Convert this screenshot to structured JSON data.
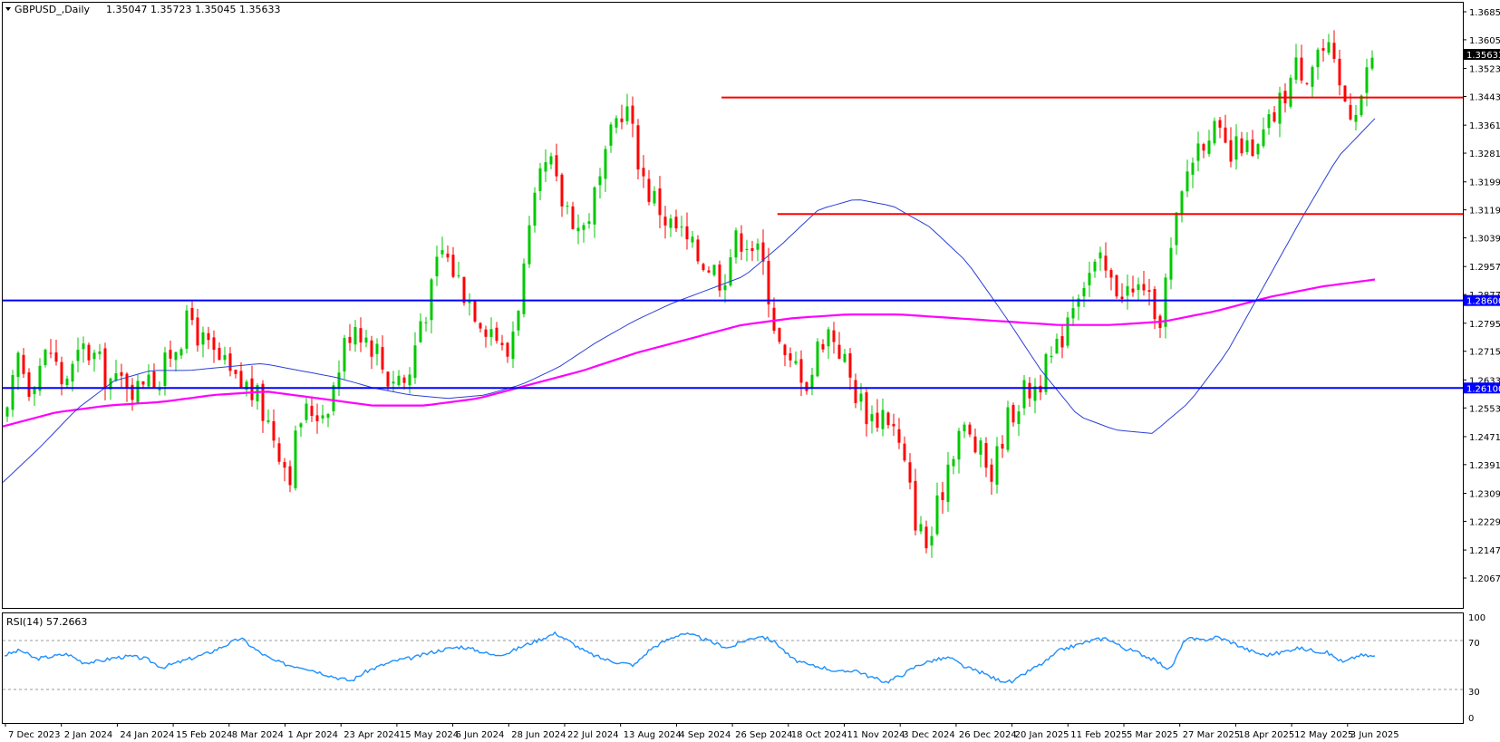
{
  "header": {
    "symbol_label": "GBPUSD_,Daily",
    "ohlc_label": "1.35047 1.35723 1.35045 1.35633"
  },
  "rsi_panel": {
    "label": "RSI(14) 57.2663",
    "levels": [
      "100",
      "70",
      "30",
      "0"
    ]
  },
  "price_tags": {
    "current": "1.35633",
    "support_upper": "1.28600",
    "support_lower": "1.26100"
  },
  "colors": {
    "bull_candle": "#00c800",
    "bear_candle": "#ff0000",
    "ma_fast": "#2b3fd6",
    "ma_slow": "#ff00ff",
    "horizontal_blue": "#0000ff",
    "horizontal_red": "#ff0000",
    "rsi_line": "#1e90ff",
    "background": "#ffffff"
  },
  "chart_data": {
    "type": "candlestick",
    "instrument": "GBPUSD_",
    "timeframe": "Daily",
    "y_axis_ticks": [
      "1.36850",
      "1.36050",
      "1.35230",
      "1.34430",
      "1.33610",
      "1.32810",
      "1.31990",
      "1.31190",
      "1.30390",
      "1.29570",
      "1.28770",
      "1.27950",
      "1.27150",
      "1.26330",
      "1.25530",
      "1.24710",
      "1.23910",
      "1.23090",
      "1.22290",
      "1.21470",
      "1.20670"
    ],
    "ylim": [
      1.2067,
      1.3685
    ],
    "x_axis_labels": [
      "7 Dec 2023",
      "2 Jan 2024",
      "24 Jan 2024",
      "15 Feb 2024",
      "8 Mar 2024",
      "1 Apr 2024",
      "23 Apr 2024",
      "15 May 2024",
      "6 Jun 2024",
      "28 Jun 2024",
      "22 Jul 2024",
      "13 Aug 2024",
      "4 Sep 2024",
      "26 Sep 2024",
      "18 Oct 2024",
      "11 Nov 2024",
      "3 Dec 2024",
      "26 Dec 2024",
      "20 Jan 2025",
      "11 Feb 2025",
      "5 Mar 2025",
      "27 Mar 2025",
      "18 Apr 2025",
      "12 May 2025",
      "3 Jun 2025"
    ],
    "close_path": [
      1.252,
      1.27,
      1.262,
      1.268,
      1.272,
      1.263,
      1.266,
      1.272,
      1.27,
      1.265,
      1.262,
      1.264,
      1.26,
      1.268,
      1.262,
      1.271,
      1.276,
      1.281,
      1.274,
      1.27,
      1.267,
      1.262,
      1.262,
      1.258,
      1.252,
      1.245,
      1.236,
      1.252,
      1.255,
      1.254,
      1.26,
      1.272,
      1.281,
      1.276,
      1.273,
      1.264,
      1.265,
      1.262,
      1.28,
      1.286,
      1.301,
      1.296,
      1.29,
      1.285,
      1.28,
      1.278,
      1.268,
      1.283,
      1.3,
      1.318,
      1.326,
      1.315,
      1.312,
      1.305,
      1.314,
      1.322,
      1.336,
      1.343,
      1.33,
      1.318,
      1.314,
      1.308,
      1.306,
      1.301,
      1.298,
      1.296,
      1.292,
      1.302,
      1.305,
      1.301,
      1.294,
      1.276,
      1.266,
      1.268,
      1.262,
      1.275,
      1.278,
      1.271,
      1.262,
      1.256,
      1.252,
      1.255,
      1.248,
      1.236,
      1.222,
      1.215,
      1.228,
      1.242,
      1.25,
      1.246,
      1.241,
      1.236,
      1.25,
      1.256,
      1.26,
      1.262,
      1.267,
      1.272,
      1.284,
      1.291,
      1.294,
      1.296,
      1.29,
      1.29,
      1.287,
      1.292,
      1.275,
      1.292,
      1.309,
      1.324,
      1.331,
      1.336,
      1.331,
      1.326,
      1.332,
      1.325,
      1.333,
      1.339,
      1.346,
      1.353,
      1.352,
      1.358,
      1.356,
      1.346,
      1.341,
      1.345,
      1.356
    ],
    "sma_fast_path": [
      1.234,
      1.244,
      1.255,
      1.263,
      1.266,
      1.266,
      1.267,
      1.268,
      1.266,
      1.264,
      1.261,
      1.259,
      1.258,
      1.259,
      1.262,
      1.267,
      1.274,
      1.28,
      1.285,
      1.289,
      1.293,
      1.302,
      1.312,
      1.315,
      1.313,
      1.307,
      1.297,
      1.282,
      1.266,
      1.253,
      1.249,
      1.248,
      1.257,
      1.271,
      1.29,
      1.309,
      1.327,
      1.338
    ],
    "sma_slow_path": [
      1.25,
      1.254,
      1.256,
      1.257,
      1.259,
      1.26,
      1.258,
      1.256,
      1.256,
      1.258,
      1.262,
      1.266,
      1.271,
      1.275,
      1.279,
      1.281,
      1.282,
      1.282,
      1.281,
      1.28,
      1.279,
      1.279,
      1.28,
      1.283,
      1.287,
      1.29,
      1.292
    ],
    "horizontal_levels": [
      {
        "price": 1.286,
        "color": "blue",
        "label": "1.28600"
      },
      {
        "price": 1.261,
        "color": "blue",
        "label": "1.26100"
      },
      {
        "price": 1.344,
        "color": "red",
        "from_label": "26 Sep 2024"
      },
      {
        "price": 1.3107,
        "color": "red",
        "from_label": "18 Oct 2024"
      }
    ],
    "last_close": 1.35633,
    "rsi": {
      "period": 14,
      "last": 57.2663,
      "ylim": [
        0,
        100
      ],
      "reference_levels": [
        70,
        30
      ],
      "path": [
        58,
        62,
        55,
        57,
        59,
        52,
        53,
        56,
        57,
        55,
        48,
        52,
        56,
        60,
        66,
        72,
        62,
        54,
        50,
        48,
        44,
        40,
        37,
        45,
        50,
        54,
        56,
        60,
        63,
        65,
        62,
        58,
        60,
        66,
        71,
        76,
        68,
        60,
        55,
        52,
        50,
        63,
        70,
        76,
        73,
        68,
        64,
        70,
        74,
        68,
        55,
        50,
        48,
        44,
        46,
        40,
        36,
        42,
        50,
        54,
        56,
        48,
        44,
        38,
        36,
        45,
        52,
        62,
        66,
        70,
        72,
        64,
        60,
        54,
        46,
        72,
        70,
        73,
        68,
        62,
        58,
        60,
        64,
        62,
        60,
        52,
        58,
        57
      ]
    }
  }
}
